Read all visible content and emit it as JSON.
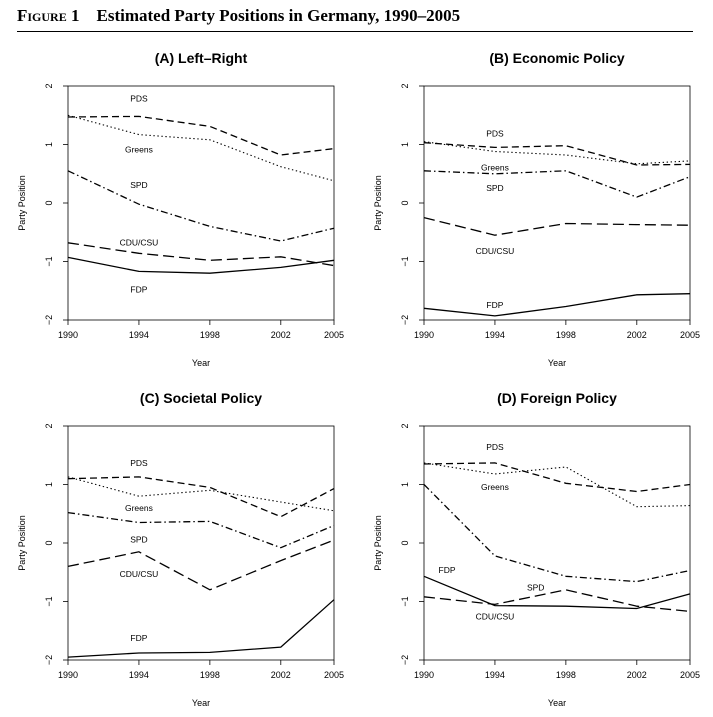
{
  "figure": {
    "label": "Figure 1",
    "title": "Estimated Party Positions in Germany, 1990–2005"
  },
  "chart_data": [
    {
      "type": "line",
      "title": "(A) Left–Right",
      "xlabel": "Year",
      "ylabel": "Party Position",
      "x": [
        1990,
        1994,
        1998,
        2002,
        2005
      ],
      "xticks": [
        "1990",
        "1994",
        "1998",
        "2002",
        "2005"
      ],
      "yticks": [
        "−2",
        "−1",
        "0",
        "1",
        "2"
      ],
      "xlim": [
        1990,
        2005
      ],
      "ylim": [
        -2,
        2
      ],
      "series": [
        {
          "name": "PDS",
          "style": "dashed",
          "values": [
            1.47,
            1.48,
            1.31,
            0.82,
            0.93
          ]
        },
        {
          "name": "Greens",
          "style": "dotted",
          "values": [
            1.5,
            1.17,
            1.08,
            0.62,
            0.38
          ]
        },
        {
          "name": "SPD",
          "style": "dashdot",
          "values": [
            0.55,
            -0.02,
            -0.4,
            -0.65,
            -0.43
          ]
        },
        {
          "name": "CDU/CSU",
          "style": "longdash",
          "values": [
            -0.68,
            -0.86,
            -0.98,
            -0.92,
            -1.07
          ]
        },
        {
          "name": "FDP",
          "style": "solid",
          "values": [
            -0.93,
            -1.17,
            -1.2,
            -1.1,
            -0.98
          ]
        }
      ]
    },
    {
      "type": "line",
      "title": "(B) Economic Policy",
      "xlabel": "Year",
      "ylabel": "Party Position",
      "x": [
        1990,
        1994,
        1998,
        2002,
        2005
      ],
      "xticks": [
        "1990",
        "1994",
        "1998",
        "2002",
        "2005"
      ],
      "yticks": [
        "−2",
        "−1",
        "0",
        "1",
        "2"
      ],
      "xlim": [
        1990,
        2005
      ],
      "ylim": [
        -2,
        2
      ],
      "series": [
        {
          "name": "PDS",
          "style": "dashed",
          "values": [
            1.03,
            0.95,
            0.98,
            0.65,
            0.66
          ]
        },
        {
          "name": "Greens",
          "style": "dotted",
          "values": [
            1.05,
            0.88,
            0.82,
            0.67,
            0.72
          ]
        },
        {
          "name": "SPD",
          "style": "dashdot",
          "values": [
            0.55,
            0.5,
            0.55,
            0.1,
            0.45
          ]
        },
        {
          "name": "CDU/CSU",
          "style": "longdash",
          "values": [
            -0.25,
            -0.55,
            -0.35,
            -0.37,
            -0.38
          ]
        },
        {
          "name": "FDP",
          "style": "solid",
          "values": [
            -1.8,
            -1.93,
            -1.77,
            -1.57,
            -1.55
          ]
        }
      ]
    },
    {
      "type": "line",
      "title": "(C) Societal Policy",
      "xlabel": "Year",
      "ylabel": "Party Position",
      "x": [
        1990,
        1994,
        1998,
        2002,
        2005
      ],
      "xticks": [
        "1990",
        "1994",
        "1998",
        "2002",
        "2005"
      ],
      "yticks": [
        "−2",
        "−1",
        "0",
        "1",
        "2"
      ],
      "xlim": [
        1990,
        2005
      ],
      "ylim": [
        -2,
        2
      ],
      "series": [
        {
          "name": "PDS",
          "style": "dashed",
          "values": [
            1.1,
            1.13,
            0.95,
            0.45,
            0.93
          ]
        },
        {
          "name": "Greens",
          "style": "dotted",
          "values": [
            1.13,
            0.8,
            0.9,
            0.7,
            0.55
          ]
        },
        {
          "name": "SPD",
          "style": "dashdot",
          "values": [
            0.52,
            0.35,
            0.37,
            -0.08,
            0.3
          ]
        },
        {
          "name": "CDU/CSU",
          "style": "longdash",
          "values": [
            -0.4,
            -0.15,
            -0.8,
            -0.3,
            0.05
          ]
        },
        {
          "name": "FDP",
          "style": "solid",
          "values": [
            -1.95,
            -1.88,
            -1.87,
            -1.78,
            -0.97
          ]
        }
      ]
    },
    {
      "type": "line",
      "title": "(D) Foreign Policy",
      "xlabel": "Year",
      "ylabel": "Party Position",
      "x": [
        1990,
        1994,
        1998,
        2002,
        2005
      ],
      "xticks": [
        "1990",
        "1994",
        "1998",
        "2002",
        "2005"
      ],
      "yticks": [
        "−2",
        "−1",
        "0",
        "1",
        "2"
      ],
      "xlim": [
        1990,
        2005
      ],
      "ylim": [
        -2,
        2
      ],
      "series": [
        {
          "name": "PDS",
          "style": "dashed",
          "values": [
            1.35,
            1.37,
            1.02,
            0.88,
            1.0
          ]
        },
        {
          "name": "Greens",
          "style": "dotted",
          "values": [
            1.37,
            1.18,
            1.3,
            0.62,
            0.64
          ]
        },
        {
          "name": "SPD",
          "style": "dashdot",
          "values": [
            1.0,
            -0.22,
            -0.57,
            -0.66,
            -0.47
          ]
        },
        {
          "name": "CDU/CSU",
          "style": "longdash",
          "values": [
            -0.92,
            -1.05,
            -0.8,
            -1.08,
            -1.17
          ]
        },
        {
          "name": "FDP",
          "style": "solid",
          "values": [
            -0.57,
            -1.07,
            -1.08,
            -1.12,
            -0.87
          ]
        }
      ]
    }
  ]
}
